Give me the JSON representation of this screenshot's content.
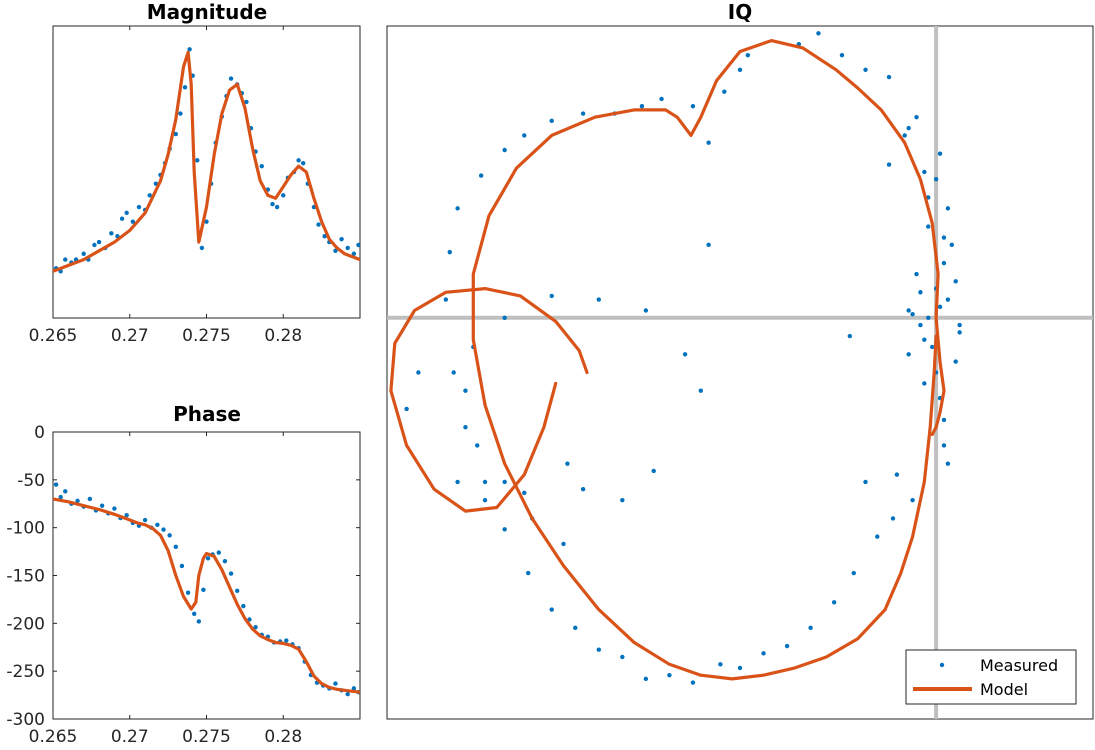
{
  "colors": {
    "measured": "#0072BD",
    "model": "#D95319",
    "axes": "#262626",
    "crosshair": "#bfbfbf"
  },
  "chart_data": [
    {
      "id": "magnitude",
      "type": "scatter",
      "title": "Magnitude",
      "xlim": [
        0.265,
        0.285
      ],
      "ylim": [
        0,
        1
      ],
      "xticks": [
        0.265,
        0.27,
        0.275,
        0.28
      ],
      "xticklabels": [
        "0.265",
        "0.27",
        "0.275",
        "0.28"
      ],
      "yticks": [],
      "series": [
        {
          "name": "Model",
          "kind": "line",
          "x": [
            0.265,
            0.266,
            0.267,
            0.268,
            0.269,
            0.27,
            0.271,
            0.272,
            0.2725,
            0.273,
            0.2735,
            0.2738,
            0.274,
            0.2742,
            0.2745,
            0.275,
            0.2755,
            0.276,
            0.2765,
            0.277,
            0.2775,
            0.278,
            0.2785,
            0.279,
            0.2795,
            0.28,
            0.2805,
            0.281,
            0.2815,
            0.282,
            0.2825,
            0.283,
            0.2835,
            0.284,
            0.285
          ],
          "y": [
            0.16,
            0.18,
            0.2,
            0.23,
            0.26,
            0.3,
            0.36,
            0.47,
            0.56,
            0.68,
            0.86,
            0.91,
            0.8,
            0.5,
            0.26,
            0.38,
            0.56,
            0.7,
            0.78,
            0.8,
            0.72,
            0.58,
            0.47,
            0.42,
            0.41,
            0.45,
            0.49,
            0.52,
            0.5,
            0.41,
            0.33,
            0.27,
            0.24,
            0.22,
            0.2
          ]
        },
        {
          "name": "Measured",
          "kind": "points",
          "x": [
            0.2652,
            0.2655,
            0.2658,
            0.2662,
            0.2665,
            0.267,
            0.2673,
            0.2677,
            0.268,
            0.2684,
            0.2688,
            0.2692,
            0.2695,
            0.2698,
            0.2702,
            0.2706,
            0.271,
            0.2713,
            0.2717,
            0.272,
            0.2723,
            0.2726,
            0.273,
            0.2733,
            0.2736,
            0.2739,
            0.2741,
            0.2744,
            0.2747,
            0.275,
            0.2753,
            0.2756,
            0.276,
            0.2763,
            0.2766,
            0.277,
            0.2773,
            0.2776,
            0.2779,
            0.2782,
            0.2786,
            0.279,
            0.2793,
            0.2796,
            0.28,
            0.2803,
            0.2807,
            0.281,
            0.2813,
            0.2816,
            0.282,
            0.2823,
            0.2827,
            0.283,
            0.2834,
            0.2838,
            0.2842,
            0.2846,
            0.2849
          ],
          "y": [
            0.17,
            0.16,
            0.2,
            0.19,
            0.2,
            0.22,
            0.2,
            0.25,
            0.26,
            0.24,
            0.29,
            0.28,
            0.34,
            0.36,
            0.33,
            0.38,
            0.37,
            0.42,
            0.46,
            0.49,
            0.53,
            0.58,
            0.63,
            0.7,
            0.79,
            0.92,
            0.83,
            0.54,
            0.24,
            0.33,
            0.46,
            0.6,
            0.69,
            0.76,
            0.82,
            0.8,
            0.77,
            0.74,
            0.65,
            0.57,
            0.52,
            0.44,
            0.39,
            0.38,
            0.42,
            0.48,
            0.5,
            0.54,
            0.53,
            0.46,
            0.38,
            0.32,
            0.28,
            0.26,
            0.23,
            0.27,
            0.24,
            0.22,
            0.25
          ]
        }
      ]
    },
    {
      "id": "phase",
      "type": "scatter",
      "title": "Phase",
      "xlim": [
        0.265,
        0.285
      ],
      "ylim": [
        -300,
        0
      ],
      "xticks": [
        0.265,
        0.27,
        0.275,
        0.28
      ],
      "xticklabels": [
        "0.265",
        "0.27",
        "0.275",
        "0.28"
      ],
      "yticks": [
        0,
        -50,
        -100,
        -150,
        -200,
        -250,
        -300
      ],
      "yticklabels": [
        "0",
        "-50",
        "-100",
        "-150",
        "-200",
        "-250",
        "-300"
      ],
      "series": [
        {
          "name": "Model",
          "kind": "line",
          "x": [
            0.265,
            0.266,
            0.267,
            0.268,
            0.269,
            0.27,
            0.2705,
            0.271,
            0.2715,
            0.272,
            0.2725,
            0.273,
            0.2735,
            0.274,
            0.2743,
            0.2745,
            0.2748,
            0.275,
            0.2755,
            0.276,
            0.2765,
            0.277,
            0.2775,
            0.278,
            0.2785,
            0.279,
            0.2795,
            0.28,
            0.2805,
            0.281,
            0.2815,
            0.282,
            0.2825,
            0.283,
            0.2835,
            0.284,
            0.285
          ],
          "y": [
            -70,
            -73,
            -77,
            -81,
            -86,
            -92,
            -95,
            -97,
            -101,
            -108,
            -124,
            -150,
            -172,
            -185,
            -178,
            -150,
            -132,
            -127,
            -130,
            -144,
            -162,
            -180,
            -195,
            -206,
            -213,
            -217,
            -220,
            -221,
            -223,
            -227,
            -240,
            -255,
            -263,
            -267,
            -269,
            -270,
            -272
          ]
        },
        {
          "name": "Measured",
          "kind": "points",
          "x": [
            0.2652,
            0.2655,
            0.2658,
            0.2662,
            0.2666,
            0.267,
            0.2674,
            0.2678,
            0.2682,
            0.2686,
            0.269,
            0.2694,
            0.2698,
            0.2702,
            0.2706,
            0.271,
            0.2714,
            0.2718,
            0.2722,
            0.2726,
            0.273,
            0.2734,
            0.2738,
            0.2742,
            0.2745,
            0.2748,
            0.2751,
            0.2754,
            0.2758,
            0.2762,
            0.2766,
            0.277,
            0.2774,
            0.2778,
            0.2782,
            0.2786,
            0.279,
            0.2794,
            0.2798,
            0.2802,
            0.2806,
            0.281,
            0.2814,
            0.2818,
            0.2822,
            0.2826,
            0.283,
            0.2834,
            0.2838,
            0.2842,
            0.2846,
            0.2849
          ],
          "y": [
            -55,
            -68,
            -62,
            -75,
            -72,
            -78,
            -70,
            -82,
            -77,
            -85,
            -80,
            -90,
            -87,
            -95,
            -98,
            -92,
            -100,
            -97,
            -102,
            -108,
            -120,
            -140,
            -168,
            -190,
            -198,
            -165,
            -132,
            -128,
            -126,
            -135,
            -148,
            -166,
            -182,
            -196,
            -204,
            -212,
            -214,
            -220,
            -219,
            -218,
            -222,
            -226,
            -240,
            -254,
            -262,
            -265,
            -268,
            -263,
            -270,
            -274,
            -268,
            -272
          ]
        }
      ]
    },
    {
      "id": "iq",
      "type": "scatter",
      "title": "IQ",
      "xlim": [
        -1.4,
        0.4
      ],
      "ylim": [
        -1.1,
        0.8
      ],
      "crosshair": {
        "x": 0,
        "y": 0
      },
      "legend": {
        "placement": "bottom-right",
        "entries": [
          "Measured",
          "Model"
        ]
      },
      "series": [
        {
          "name": "Model",
          "kind": "line",
          "x": [
            0.0,
            -0.005,
            -0.015,
            -0.03,
            -0.06,
            -0.09,
            -0.13,
            -0.2,
            -0.28,
            -0.36,
            -0.44,
            -0.52,
            -0.6,
            -0.68,
            -0.77,
            -0.86,
            -0.95,
            -1.03,
            -1.1,
            -1.15,
            -1.18,
            -1.18,
            -1.14,
            -1.07,
            -0.98,
            -0.87,
            -0.77,
            -0.69,
            -0.66,
            -0.625,
            -0.6,
            -0.56,
            -0.5,
            -0.42,
            -0.34,
            -0.255,
            -0.2,
            -0.14,
            -0.08,
            -0.04,
            -0.01,
            0.005,
            0.0,
            0.01,
            0.02,
            0.01,
            0.0,
            -0.01
          ],
          "y": [
            -0.05,
            -0.15,
            -0.3,
            -0.45,
            -0.6,
            -0.7,
            -0.8,
            -0.88,
            -0.93,
            -0.96,
            -0.98,
            -0.99,
            -0.98,
            -0.95,
            -0.89,
            -0.8,
            -0.68,
            -0.55,
            -0.4,
            -0.24,
            -0.06,
            0.12,
            0.28,
            0.41,
            0.5,
            0.55,
            0.57,
            0.57,
            0.55,
            0.5,
            0.55,
            0.65,
            0.73,
            0.76,
            0.74,
            0.68,
            0.63,
            0.57,
            0.48,
            0.38,
            0.26,
            0.12,
            0.0,
            -0.12,
            -0.2,
            -0.26,
            -0.3,
            -0.32
          ]
        },
        {
          "name": "Model",
          "kind": "line",
          "x": [
            -0.89,
            -0.91,
            -0.97,
            -1.06,
            -1.15,
            -1.25,
            -1.33,
            -1.38,
            -1.39,
            -1.35,
            -1.28,
            -1.2,
            -1.12,
            -1.05,
            -1.0,
            -0.97
          ],
          "y": [
            -0.15,
            -0.09,
            -0.01,
            0.06,
            0.08,
            0.07,
            0.02,
            -0.07,
            -0.2,
            -0.35,
            -0.47,
            -0.53,
            -0.52,
            -0.43,
            -0.3,
            -0.18
          ]
        },
        {
          "name": "Measured",
          "kind": "points",
          "x": [
            -0.02,
            0.01,
            -0.04,
            0.03,
            0.06,
            -0.07,
            0.0,
            -0.01,
            0.02,
            -0.05,
            0.05,
            -0.03,
            0.04,
            -0.02,
            0.01,
            0.03,
            -0.06,
            0.02,
            0.05,
            -0.03,
            0.0,
            0.06,
            0.02,
            -0.04,
            0.01,
            0.03,
            -0.02,
            0.0,
            0.02,
            -0.07,
            -0.1,
            -0.12,
            -0.06,
            -0.11,
            -0.15,
            -0.18,
            -0.08,
            -0.05,
            -0.21,
            -0.26,
            -0.32,
            -0.38,
            -0.44,
            -0.5,
            -0.55,
            -0.62,
            -0.68,
            -0.74,
            -0.8,
            -0.86,
            -0.92,
            -0.98,
            -1.04,
            -1.1,
            -1.15,
            -1.2,
            -1.23,
            -1.25,
            -1.24,
            -1.22,
            -1.16,
            -1.1,
            -1.05,
            -0.98,
            -0.9,
            -0.82,
            -0.75,
            -0.62,
            -0.7,
            -0.58,
            -0.54,
            -0.5,
            -0.48,
            -0.35,
            -0.3,
            -0.24,
            -0.18,
            -0.12,
            -0.07,
            -0.03,
            -0.95,
            -1.03,
            -1.1,
            -1.17,
            -1.2,
            -1.18,
            -1.1,
            -0.98,
            -0.86,
            -0.74,
            -0.64,
            -0.94,
            -1.05,
            -1.15,
            -1.22,
            -1.32,
            -1.35,
            -0.9,
            -0.8,
            -0.72,
            -0.6,
            -0.58,
            -0.22
          ],
          "y": [
            0.0,
            0.03,
            -0.02,
            0.05,
            -0.04,
            0.02,
            0.08,
            -0.08,
            0.15,
            0.12,
            -0.12,
            -0.18,
            0.2,
            0.25,
            -0.22,
            0.3,
            0.01,
            -0.28,
            0.1,
            -0.06,
            0.38,
            -0.02,
            -0.35,
            0.07,
            0.45,
            -0.4,
            0.33,
            -0.15,
            0.22,
            -0.1,
            -0.43,
            0.42,
            -0.5,
            -0.55,
            -0.6,
            -0.45,
            0.5,
            0.55,
            -0.7,
            -0.78,
            -0.85,
            -0.9,
            -0.92,
            -0.96,
            -0.95,
            -1.0,
            -0.98,
            -0.99,
            -0.93,
            -0.91,
            -0.85,
            -0.8,
            -0.7,
            -0.58,
            -0.45,
            -0.3,
            -0.15,
            0.05,
            0.18,
            0.3,
            0.39,
            0.46,
            0.5,
            0.54,
            0.56,
            0.56,
            0.58,
            0.58,
            0.6,
            0.48,
            0.62,
            0.68,
            0.72,
            0.75,
            0.78,
            0.72,
            0.68,
            0.66,
            0.52,
            0.4,
            -0.62,
            -0.55,
            -0.45,
            -0.35,
            -0.2,
            -0.08,
            0.0,
            0.06,
            0.05,
            0.02,
            -0.1,
            -0.4,
            -0.48,
            -0.5,
            -0.45,
            -0.15,
            -0.25,
            -0.47,
            -0.5,
            -0.42,
            -0.2,
            0.2,
            -0.05
          ]
        }
      ]
    }
  ]
}
